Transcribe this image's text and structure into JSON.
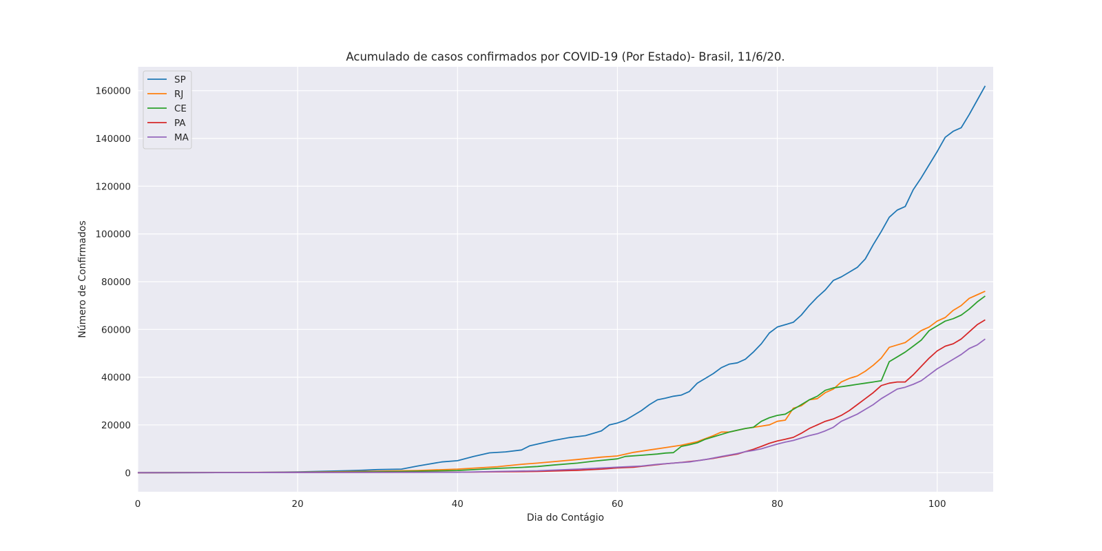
{
  "chart_data": {
    "type": "line",
    "title": "Acumulado de casos confirmados por COVID-19 (Por Estado)- Brasil, 11/6/20.",
    "xlabel": "Dia do Contágio",
    "ylabel": "Número de Confirmados",
    "xlim": [
      0,
      107
    ],
    "ylim": [
      -8000,
      170000
    ],
    "xticks": [
      0,
      20,
      40,
      60,
      80,
      100
    ],
    "yticks": [
      0,
      20000,
      40000,
      60000,
      80000,
      100000,
      120000,
      140000,
      160000
    ],
    "grid": true,
    "legend_position": "top-left",
    "colors": {
      "background": "#eaeaf2",
      "grid": "#ffffff"
    },
    "series": [
      {
        "name": "SP",
        "color": "#1f77b4",
        "points": [
          [
            0,
            0
          ],
          [
            10,
            50
          ],
          [
            15,
            100
          ],
          [
            20,
            300
          ],
          [
            25,
            700
          ],
          [
            28,
            1000
          ],
          [
            30,
            1300
          ],
          [
            33,
            1500
          ],
          [
            35,
            2800
          ],
          [
            38,
            4500
          ],
          [
            40,
            5000
          ],
          [
            42,
            6800
          ],
          [
            44,
            8300
          ],
          [
            46,
            8700
          ],
          [
            48,
            9500
          ],
          [
            49,
            11200
          ],
          [
            50,
            12000
          ],
          [
            52,
            13500
          ],
          [
            54,
            14700
          ],
          [
            56,
            15500
          ],
          [
            57,
            16500
          ],
          [
            58,
            17500
          ],
          [
            59,
            20000
          ],
          [
            60,
            20800
          ],
          [
            61,
            22000
          ],
          [
            62,
            24000
          ],
          [
            63,
            26000
          ],
          [
            64,
            28500
          ],
          [
            65,
            30500
          ],
          [
            66,
            31200
          ],
          [
            67,
            32000
          ],
          [
            68,
            32500
          ],
          [
            69,
            34000
          ],
          [
            70,
            37500
          ],
          [
            71,
            39500
          ],
          [
            72,
            41500
          ],
          [
            73,
            44000
          ],
          [
            74,
            45500
          ],
          [
            75,
            46000
          ],
          [
            76,
            47500
          ],
          [
            77,
            50500
          ],
          [
            78,
            54000
          ],
          [
            79,
            58500
          ],
          [
            80,
            61000
          ],
          [
            81,
            62000
          ],
          [
            82,
            63000
          ],
          [
            83,
            66000
          ],
          [
            84,
            70000
          ],
          [
            85,
            73500
          ],
          [
            86,
            76500
          ],
          [
            87,
            80500
          ],
          [
            88,
            82000
          ],
          [
            89,
            84000
          ],
          [
            90,
            86000
          ],
          [
            91,
            89500
          ],
          [
            92,
            95500
          ],
          [
            93,
            101000
          ],
          [
            94,
            107000
          ],
          [
            95,
            110000
          ],
          [
            96,
            111500
          ],
          [
            97,
            118500
          ],
          [
            98,
            123500
          ],
          [
            99,
            129000
          ],
          [
            100,
            134500
          ],
          [
            101,
            140500
          ],
          [
            102,
            143000
          ],
          [
            103,
            144500
          ],
          [
            104,
            150000
          ],
          [
            105,
            156000
          ],
          [
            106,
            162000
          ]
        ]
      },
      {
        "name": "RJ",
        "color": "#ff7f0e",
        "points": [
          [
            0,
            0
          ],
          [
            20,
            200
          ],
          [
            30,
            600
          ],
          [
            35,
            900
          ],
          [
            40,
            1500
          ],
          [
            45,
            2500
          ],
          [
            48,
            3500
          ],
          [
            50,
            4000
          ],
          [
            55,
            5500
          ],
          [
            58,
            6500
          ],
          [
            60,
            7000
          ],
          [
            62,
            8500
          ],
          [
            64,
            9500
          ],
          [
            66,
            10500
          ],
          [
            68,
            11500
          ],
          [
            70,
            13000
          ],
          [
            72,
            15500
          ],
          [
            73,
            17000
          ],
          [
            74,
            17000
          ],
          [
            76,
            18500
          ],
          [
            78,
            19500
          ],
          [
            79,
            20000
          ],
          [
            80,
            21500
          ],
          [
            81,
            22000
          ],
          [
            82,
            27000
          ],
          [
            83,
            28000
          ],
          [
            84,
            30500
          ],
          [
            85,
            31000
          ],
          [
            86,
            33500
          ],
          [
            87,
            35000
          ],
          [
            88,
            38000
          ],
          [
            89,
            39500
          ],
          [
            90,
            40500
          ],
          [
            91,
            42500
          ],
          [
            92,
            45000
          ],
          [
            93,
            48000
          ],
          [
            94,
            52500
          ],
          [
            95,
            53500
          ],
          [
            96,
            54500
          ],
          [
            97,
            57000
          ],
          [
            98,
            59500
          ],
          [
            99,
            61000
          ],
          [
            100,
            63500
          ],
          [
            101,
            65000
          ],
          [
            102,
            68000
          ],
          [
            103,
            70000
          ],
          [
            104,
            73000
          ],
          [
            105,
            74500
          ],
          [
            106,
            76000
          ]
        ]
      },
      {
        "name": "CE",
        "color": "#2ca02c",
        "points": [
          [
            0,
            0
          ],
          [
            20,
            100
          ],
          [
            30,
            400
          ],
          [
            35,
            600
          ],
          [
            40,
            900
          ],
          [
            45,
            1800
          ],
          [
            48,
            2200
          ],
          [
            50,
            2600
          ],
          [
            52,
            3200
          ],
          [
            55,
            4000
          ],
          [
            57,
            4800
          ],
          [
            60,
            5800
          ],
          [
            61,
            6800
          ],
          [
            63,
            7300
          ],
          [
            65,
            7800
          ],
          [
            66,
            8200
          ],
          [
            67,
            8400
          ],
          [
            68,
            11000
          ],
          [
            69,
            11700
          ],
          [
            70,
            12500
          ],
          [
            71,
            14000
          ],
          [
            72,
            15000
          ],
          [
            73,
            16000
          ],
          [
            74,
            17000
          ],
          [
            75,
            17800
          ],
          [
            76,
            18500
          ],
          [
            77,
            19000
          ],
          [
            78,
            21500
          ],
          [
            79,
            23000
          ],
          [
            80,
            24000
          ],
          [
            81,
            24500
          ],
          [
            82,
            26500
          ],
          [
            83,
            28500
          ],
          [
            84,
            30500
          ],
          [
            85,
            32000
          ],
          [
            86,
            34500
          ],
          [
            87,
            35500
          ],
          [
            88,
            36000
          ],
          [
            89,
            36500
          ],
          [
            90,
            37000
          ],
          [
            91,
            37500
          ],
          [
            92,
            38000
          ],
          [
            93,
            38500
          ],
          [
            94,
            46500
          ],
          [
            95,
            48500
          ],
          [
            96,
            50500
          ],
          [
            97,
            53000
          ],
          [
            98,
            55500
          ],
          [
            99,
            59500
          ],
          [
            100,
            61500
          ],
          [
            101,
            63500
          ],
          [
            102,
            64500
          ],
          [
            103,
            66000
          ],
          [
            104,
            68500
          ],
          [
            105,
            71500
          ],
          [
            106,
            74000
          ]
        ]
      },
      {
        "name": "PA",
        "color": "#d62728",
        "points": [
          [
            0,
            0
          ],
          [
            40,
            200
          ],
          [
            50,
            500
          ],
          [
            55,
            1000
          ],
          [
            58,
            1500
          ],
          [
            60,
            2000
          ],
          [
            62,
            2300
          ],
          [
            64,
            3000
          ],
          [
            66,
            3700
          ],
          [
            68,
            4300
          ],
          [
            70,
            5000
          ],
          [
            72,
            6000
          ],
          [
            74,
            7200
          ],
          [
            75,
            7800
          ],
          [
            76,
            8800
          ],
          [
            77,
            9800
          ],
          [
            78,
            11000
          ],
          [
            79,
            12300
          ],
          [
            80,
            13300
          ],
          [
            81,
            14000
          ],
          [
            82,
            14800
          ],
          [
            83,
            16500
          ],
          [
            84,
            18500
          ],
          [
            85,
            20000
          ],
          [
            86,
            21500
          ],
          [
            87,
            22500
          ],
          [
            88,
            24000
          ],
          [
            89,
            26000
          ],
          [
            90,
            28500
          ],
          [
            91,
            31000
          ],
          [
            92,
            33500
          ],
          [
            93,
            36500
          ],
          [
            94,
            37500
          ],
          [
            95,
            38000
          ],
          [
            96,
            38000
          ],
          [
            97,
            41000
          ],
          [
            98,
            44500
          ],
          [
            99,
            48000
          ],
          [
            100,
            51000
          ],
          [
            101,
            53000
          ],
          [
            102,
            54000
          ],
          [
            103,
            56000
          ],
          [
            104,
            59000
          ],
          [
            105,
            62000
          ],
          [
            106,
            64000
          ]
        ]
      },
      {
        "name": "MA",
        "color": "#9467bd",
        "points": [
          [
            0,
            0
          ],
          [
            40,
            150
          ],
          [
            50,
            800
          ],
          [
            55,
            1500
          ],
          [
            60,
            2300
          ],
          [
            63,
            2800
          ],
          [
            65,
            3500
          ],
          [
            67,
            4000
          ],
          [
            69,
            4500
          ],
          [
            71,
            5500
          ],
          [
            73,
            6800
          ],
          [
            75,
            8000
          ],
          [
            76,
            8800
          ],
          [
            77,
            9300
          ],
          [
            78,
            10000
          ],
          [
            79,
            11000
          ],
          [
            80,
            12000
          ],
          [
            81,
            12800
          ],
          [
            82,
            13500
          ],
          [
            83,
            14500
          ],
          [
            84,
            15500
          ],
          [
            85,
            16300
          ],
          [
            86,
            17500
          ],
          [
            87,
            19000
          ],
          [
            88,
            21500
          ],
          [
            89,
            23000
          ],
          [
            90,
            24500
          ],
          [
            91,
            26500
          ],
          [
            92,
            28500
          ],
          [
            93,
            31000
          ],
          [
            94,
            33000
          ],
          [
            95,
            35000
          ],
          [
            96,
            35800
          ],
          [
            97,
            37000
          ],
          [
            98,
            38500
          ],
          [
            99,
            41000
          ],
          [
            100,
            43500
          ],
          [
            101,
            45500
          ],
          [
            102,
            47500
          ],
          [
            103,
            49500
          ],
          [
            104,
            52000
          ],
          [
            105,
            53500
          ],
          [
            106,
            56000
          ]
        ]
      }
    ]
  }
}
